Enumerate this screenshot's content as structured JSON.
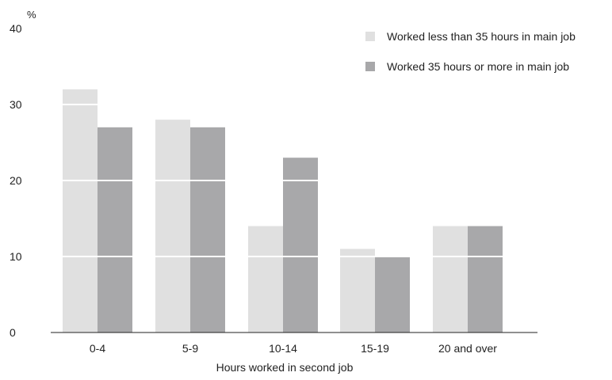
{
  "chart_data": {
    "type": "bar",
    "title": "",
    "ylabel": "%",
    "xlabel": "Hours worked in second job",
    "categories": [
      "0-4",
      "5-9",
      "10-14",
      "15-19",
      "20 and over"
    ],
    "series": [
      {
        "name": "Worked less than 35 hours in main job",
        "values": [
          32,
          28,
          14,
          11,
          14
        ],
        "color": "#e0e0e0"
      },
      {
        "name": "Worked 35 hours or more in main job",
        "values": [
          27,
          27,
          23,
          10,
          14
        ],
        "color": "#a8a8aa"
      }
    ],
    "ylim": [
      0,
      40
    ],
    "yticks": [
      0,
      10,
      20,
      30,
      40
    ],
    "grid": "white lines across bars at each y tick",
    "legend": "top-right"
  }
}
